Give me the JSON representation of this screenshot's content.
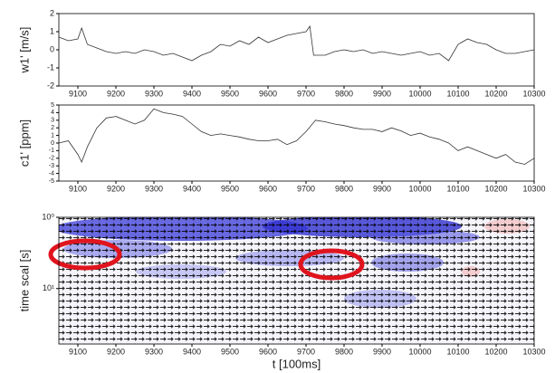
{
  "chart_data": [
    {
      "type": "line",
      "ylabel": "w1' [m/s]",
      "color": "#333333",
      "x": [
        9050,
        9075,
        9100,
        9110,
        9125,
        9150,
        9175,
        9200,
        9225,
        9250,
        9275,
        9300,
        9325,
        9350,
        9375,
        9400,
        9425,
        9450,
        9475,
        9500,
        9525,
        9550,
        9575,
        9600,
        9625,
        9650,
        9675,
        9700,
        9710,
        9720,
        9750,
        9775,
        9800,
        9825,
        9850,
        9875,
        9900,
        9925,
        9950,
        9975,
        10000,
        10025,
        10050,
        10075,
        10100,
        10125,
        10150,
        10175,
        10200,
        10225,
        10250,
        10275,
        10300
      ],
      "values": [
        0.7,
        0.5,
        0.6,
        1.2,
        0.3,
        0.1,
        -0.1,
        -0.2,
        -0.1,
        -0.2,
        0.0,
        -0.1,
        -0.3,
        -0.2,
        -0.4,
        -0.6,
        -0.3,
        -0.1,
        0.3,
        0.2,
        0.5,
        0.3,
        0.7,
        0.4,
        0.6,
        0.8,
        0.9,
        1.0,
        1.3,
        -0.3,
        -0.3,
        -0.1,
        0.0,
        -0.1,
        0.0,
        -0.2,
        -0.1,
        -0.2,
        -0.3,
        -0.2,
        -0.1,
        -0.3,
        -0.2,
        -0.6,
        0.3,
        0.6,
        0.4,
        0.3,
        0.0,
        -0.2,
        -0.2,
        -0.1,
        0.0
      ],
      "xlim": [
        9050,
        10300
      ],
      "xticks": [
        9100,
        9200,
        9300,
        9400,
        9500,
        9600,
        9700,
        9800,
        9900,
        10000,
        10100,
        10200,
        10300
      ],
      "ylim": [
        -2,
        2
      ],
      "yticks": [
        -2,
        -1,
        0,
        1,
        2
      ]
    },
    {
      "type": "line",
      "ylabel": "c1' [ppm]",
      "color": "#333333",
      "x": [
        9050,
        9075,
        9100,
        9110,
        9125,
        9150,
        9175,
        9200,
        9225,
        9250,
        9275,
        9300,
        9325,
        9350,
        9375,
        9400,
        9425,
        9450,
        9475,
        9500,
        9525,
        9550,
        9575,
        9600,
        9625,
        9650,
        9675,
        9700,
        9725,
        9750,
        9775,
        9800,
        9825,
        9850,
        9875,
        9900,
        9925,
        9950,
        9975,
        10000,
        10025,
        10050,
        10075,
        10100,
        10125,
        10150,
        10175,
        10200,
        10225,
        10250,
        10275,
        10300
      ],
      "values": [
        0,
        0.3,
        -1.5,
        -2.5,
        -0.5,
        2,
        3.3,
        3.5,
        3,
        2.5,
        3,
        4.5,
        4,
        3.8,
        3.5,
        2.5,
        1.5,
        1.0,
        1.2,
        1.0,
        0.8,
        0.5,
        0.3,
        0.3,
        0.5,
        -0.2,
        0.3,
        1.5,
        3.0,
        2.8,
        2.5,
        2.3,
        2.0,
        1.8,
        1.8,
        1.5,
        2.0,
        1.6,
        1.0,
        1.3,
        0.8,
        0.5,
        0.0,
        -1.0,
        -0.5,
        -1.0,
        -1.5,
        -2.0,
        -1.5,
        -2.5,
        -2.8,
        -2.0
      ],
      "xlim": [
        9050,
        10300
      ],
      "xticks": [
        9100,
        9200,
        9300,
        9400,
        9500,
        9600,
        9700,
        9800,
        9900,
        10000,
        10100,
        10200,
        10300
      ],
      "ylim": [
        -5,
        5
      ],
      "yticks": [
        -5,
        -4,
        -3,
        -2,
        -1,
        0,
        1,
        2,
        3,
        4,
        5
      ]
    },
    {
      "type": "coherence",
      "ylabel": "time scal [s]",
      "xlabel": "t [100ms]",
      "log_y": true,
      "xlim": [
        9050,
        10300
      ],
      "xticks": [
        9100,
        9200,
        9300,
        9400,
        9500,
        9600,
        9700,
        9800,
        9900,
        10000,
        10100,
        10200,
        10300
      ],
      "ylim": [
        1,
        60
      ],
      "yticks": [
        {
          "value": 1,
          "label": "10⁰"
        },
        {
          "value": 10,
          "label": "10¹"
        }
      ]
    }
  ]
}
